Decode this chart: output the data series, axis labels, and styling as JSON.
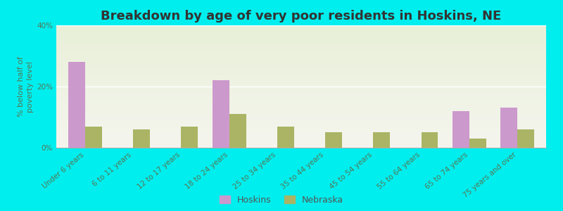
{
  "title": "Breakdown by age of very poor residents in Hoskins, NE",
  "ylabel": "% below half of\npoverty level",
  "categories": [
    "Under 6 years",
    "6 to 11 years",
    "12 to 17 years",
    "18 to 24 years",
    "25 to 34 years",
    "35 to 44 years",
    "45 to 54 years",
    "55 to 64 years",
    "65 to 74 years",
    "75 years and over"
  ],
  "hoskins_values": [
    28,
    0,
    0,
    22,
    0,
    0,
    0,
    0,
    12,
    13
  ],
  "nebraska_values": [
    7,
    6,
    7,
    11,
    7,
    5,
    5,
    5,
    3,
    6
  ],
  "hoskins_color": "#cc99cc",
  "nebraska_color": "#aab464",
  "background_color": "#00eeee",
  "plot_bg_color": "#dde8cc",
  "ylim": [
    0,
    40
  ],
  "yticks": [
    0,
    20,
    40
  ],
  "ytick_labels": [
    "0%",
    "20%",
    "40%"
  ],
  "bar_width": 0.35,
  "title_fontsize": 13,
  "axis_label_fontsize": 8,
  "tick_fontsize": 7.5,
  "legend_labels": [
    "Hoskins",
    "Nebraska"
  ],
  "grid_color": "#ffffff",
  "tick_color": "#557755"
}
